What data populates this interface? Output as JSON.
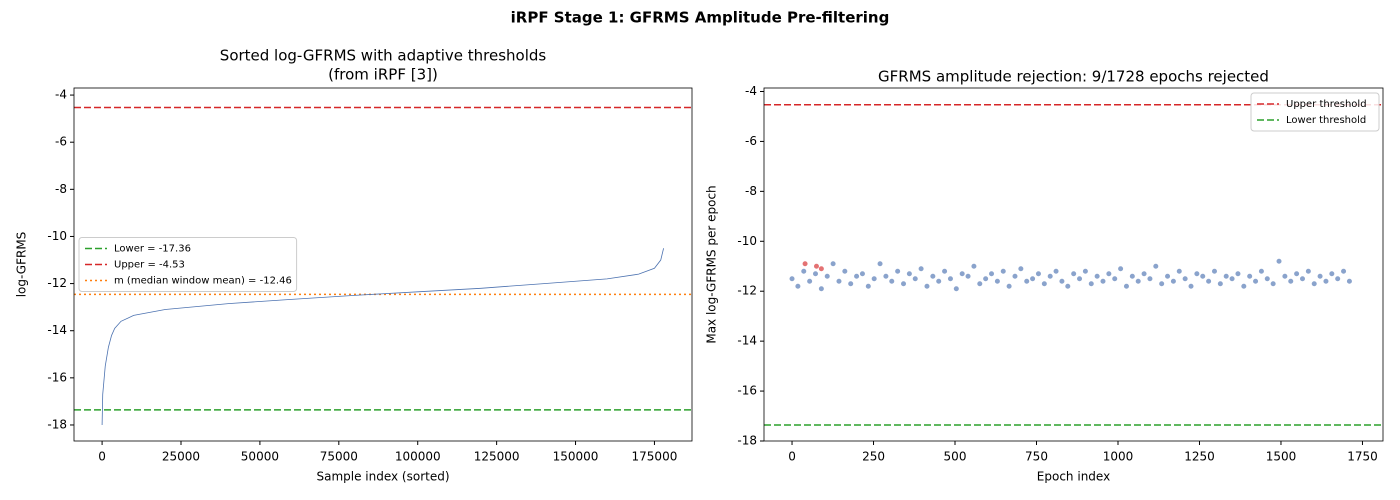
{
  "title": "iRPF Stage 1: GFRMS Amplitude Pre-filtering",
  "chart_data": [
    {
      "type": "line",
      "title": [
        "Sorted log-GFRMS with adaptive thresholds",
        "(from iRPF [3])"
      ],
      "xlabel": "Sample index (sorted)",
      "ylabel": "log-GFRMS",
      "xlim": [
        -8900,
        186900
      ],
      "xticks": [
        0,
        25000,
        50000,
        75000,
        100000,
        125000,
        150000,
        175000
      ],
      "ylim": [
        -18.68,
        -3.7
      ],
      "yticks": [
        -18,
        -16,
        -14,
        -12,
        -10,
        -8,
        -6,
        -4
      ],
      "legend": "center left",
      "series": [
        {
          "color": "#4c72b0",
          "x": [
            0,
            200,
            1000,
            2000,
            3000,
            4000,
            6000,
            10000,
            20000,
            40000,
            60000,
            80000,
            100000,
            120000,
            140000,
            160000,
            170000,
            175000,
            177000,
            177900
          ],
          "values": [
            -18.0,
            -16.7,
            -15.5,
            -14.7,
            -14.2,
            -13.9,
            -13.6,
            -13.35,
            -13.1,
            -12.85,
            -12.67,
            -12.5,
            -12.35,
            -12.2,
            -12.0,
            -11.8,
            -11.6,
            -11.35,
            -11.0,
            -10.5
          ]
        }
      ],
      "hlines": [
        {
          "name": "Lower = -17.36",
          "value": -17.36,
          "color": "#2ca02c",
          "style": "dashed"
        },
        {
          "name": "Upper = -4.53",
          "value": -4.53,
          "color": "#d62728",
          "style": "dashed"
        },
        {
          "name": "m (median window mean) = -12.46",
          "value": -12.46,
          "color": "#ff7f0e",
          "style": "dotted"
        }
      ]
    },
    {
      "type": "scatter",
      "title": [
        "GFRMS amplitude rejection: 9/1728 epochs rejected"
      ],
      "xlabel": "Epoch index",
      "ylabel": "Max log-GFRMS per epoch",
      "xlim": [
        -86,
        1813
      ],
      "xticks": [
        0,
        250,
        500,
        750,
        1000,
        1250,
        1500,
        1750
      ],
      "ylim": [
        -18,
        -3.86
      ],
      "yticks": [
        -18,
        -16,
        -14,
        -12,
        -10,
        -8,
        -6,
        -4
      ],
      "legend": "upper right",
      "series": [
        {
          "color": "#4c72b0",
          "x": [
            0,
            18,
            36,
            54,
            72,
            90,
            108,
            126,
            144,
            162,
            180,
            198,
            216,
            234,
            252,
            270,
            288,
            306,
            324,
            342,
            360,
            378,
            396,
            414,
            432,
            450,
            468,
            486,
            504,
            522,
            540,
            558,
            576,
            594,
            612,
            630,
            648,
            666,
            684,
            702,
            720,
            738,
            756,
            774,
            792,
            810,
            828,
            846,
            864,
            882,
            900,
            918,
            936,
            954,
            972,
            990,
            1008,
            1026,
            1044,
            1062,
            1080,
            1098,
            1116,
            1134,
            1152,
            1170,
            1188,
            1206,
            1224,
            1242,
            1260,
            1278,
            1296,
            1314,
            1332,
            1350,
            1368,
            1386,
            1404,
            1422,
            1440,
            1458,
            1476,
            1494,
            1512,
            1530,
            1548,
            1566,
            1584,
            1602,
            1620,
            1638,
            1656,
            1674,
            1692,
            1710
          ],
          "values": [
            -11.5,
            -11.8,
            -11.2,
            -11.6,
            -11.3,
            -11.9,
            -11.4,
            -10.9,
            -11.6,
            -11.2,
            -11.7,
            -11.4,
            -11.3,
            -11.8,
            -11.5,
            -10.9,
            -11.4,
            -11.6,
            -11.2,
            -11.7,
            -11.3,
            -11.5,
            -11.1,
            -11.8,
            -11.4,
            -11.6,
            -11.2,
            -11.5,
            -11.9,
            -11.3,
            -11.4,
            -11.0,
            -11.7,
            -11.5,
            -11.3,
            -11.6,
            -11.2,
            -11.8,
            -11.4,
            -11.1,
            -11.6,
            -11.5,
            -11.3,
            -11.7,
            -11.4,
            -11.2,
            -11.6,
            -11.8,
            -11.3,
            -11.5,
            -11.2,
            -11.7,
            -11.4,
            -11.6,
            -11.3,
            -11.5,
            -11.1,
            -11.8,
            -11.4,
            -11.6,
            -11.3,
            -11.5,
            -11.0,
            -11.7,
            -11.4,
            -11.6,
            -11.2,
            -11.5,
            -11.8,
            -11.3,
            -11.4,
            -11.6,
            -11.2,
            -11.7,
            -11.4,
            -11.5,
            -11.3,
            -11.8,
            -11.4,
            -11.6,
            -11.2,
            -11.5,
            -11.7,
            -10.8,
            -11.4,
            -11.6,
            -11.3,
            -11.5,
            -11.2,
            -11.7,
            -11.4,
            -11.6,
            -11.3,
            -11.5,
            -11.2,
            -11.6
          ]
        },
        {
          "color": "#d62728",
          "x": [
            40,
            75,
            90
          ],
          "values": [
            -10.9,
            -11.0,
            -11.1
          ]
        }
      ],
      "hlines": [
        {
          "name": "Upper threshold",
          "value": -4.53,
          "color": "#d62728",
          "style": "dashed"
        },
        {
          "name": "Lower threshold",
          "value": -17.36,
          "color": "#2ca02c",
          "style": "dashed"
        }
      ]
    }
  ]
}
